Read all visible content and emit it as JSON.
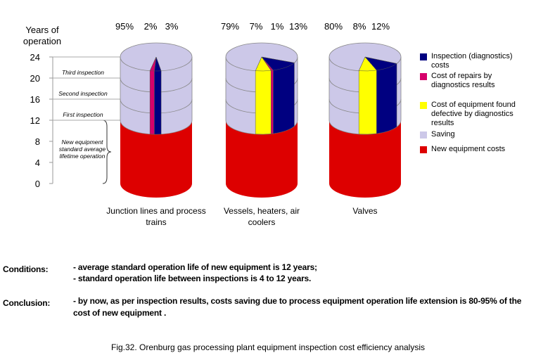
{
  "chart_data": {
    "type": "cylinder",
    "y_label": "Years of operation",
    "ylim": [
      0,
      24
    ],
    "yticks": [
      0,
      4,
      8,
      12,
      16,
      20,
      24
    ],
    "categories": [
      "Junction lines and process trains",
      "Vessels, heaters, air coolers",
      "Valves"
    ],
    "annotations": [
      "Third inspection",
      "Second inspection",
      "First inspection",
      "New equipment standard average lifetime operation"
    ],
    "series": [
      {
        "name": "Inspection (diagnostics) costs",
        "color": "#000080",
        "values": [
          3,
          13,
          12
        ],
        "value_labels": [
          "3%",
          "13%",
          "12%"
        ]
      },
      {
        "name": "Cost of repairs by diagnostics results",
        "color": "#d6006b",
        "values": [
          2,
          1,
          null
        ],
        "value_labels": [
          "2%",
          "1%",
          null
        ]
      },
      {
        "name": "Cost of equipment found defective by diagnostics results",
        "color": "#ffff00",
        "values": [
          null,
          7,
          8
        ],
        "value_labels": [
          null,
          "7%",
          "8%"
        ]
      },
      {
        "name": "Saving",
        "color": "#ccc8e8",
        "values": [
          95,
          79,
          80
        ],
        "value_labels": [
          "95%",
          "79%",
          "80%"
        ]
      },
      {
        "name": "New equipment costs",
        "color": "#dd0000",
        "values": [
          12,
          12,
          12
        ]
      }
    ]
  },
  "notes": {
    "conditions_label": "Conditions:",
    "conditions": [
      "- average standard operation life of new equipment is 12 years;",
      "- standard operation life between inspections is 4 to 12 years."
    ],
    "conclusion_label": "Conclusion:",
    "conclusion": "- by now, as per inspection results,  costs saving due to process equipment operation life extension is 80-95% of the cost of new equipment .",
    "caption": "Fig.32. Orenburg gas processing plant equipment inspection cost efficiency analysis"
  }
}
